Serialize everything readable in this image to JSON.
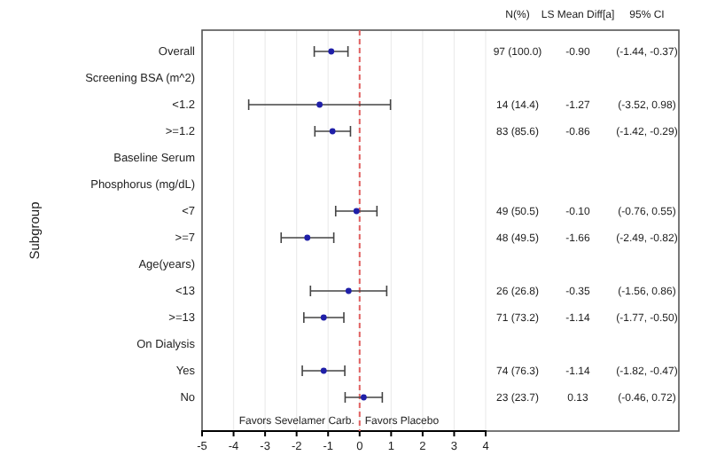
{
  "chart_data": {
    "type": "scatter",
    "orientation": "horizontal",
    "ylabel": "Subgroup",
    "categories": [
      "Overall",
      "Screening BSA (m^2)",
      "<1.2",
      ">=1.2",
      "Baseline Serum",
      "Phosphorus (mg/dL)",
      "<7",
      ">=7",
      "Age(years)",
      "<13",
      ">=13",
      "On Dialysis",
      "Yes",
      "No"
    ],
    "series": [
      {
        "color": "#1f1fa8",
        "values": [
          -0.9,
          null,
          -1.27,
          -0.86,
          null,
          null,
          -0.1,
          -1.66,
          null,
          -0.35,
          -1.14,
          null,
          -1.14,
          0.13
        ],
        "errors": [
          [
            -1.44,
            -0.37
          ],
          null,
          [
            -3.52,
            0.98
          ],
          [
            -1.42,
            -0.29
          ],
          null,
          null,
          [
            -0.76,
            0.55
          ],
          [
            -2.49,
            -0.82
          ],
          null,
          [
            -1.56,
            0.86
          ],
          [
            -1.77,
            -0.5
          ],
          null,
          [
            -1.82,
            -0.47
          ],
          [
            -0.46,
            0.72
          ]
        ],
        "value_labels": [
          "-0.90",
          null,
          "-1.27",
          "-0.86",
          null,
          null,
          "-0.10",
          "-1.66",
          null,
          "-0.35",
          "-1.14",
          null,
          "-1.14",
          "0.13"
        ]
      }
    ],
    "xlim": [
      -5,
      4
    ],
    "xticks": [
      -5,
      -4,
      -3,
      -2,
      -1,
      0,
      1,
      2,
      3,
      4
    ],
    "grid": "x",
    "marker": "circle",
    "ref_lines": [
      {
        "axis": "x",
        "value": 0,
        "color": "#e06060",
        "line_style": "dashed"
      }
    ],
    "annotations": [
      "N(%)",
      "LS Mean Diff[a]",
      "95% CI",
      "Favors Sevelamer Carb.",
      "Favors Placebo",
      "97 (100.0)",
      "14 (14.4)",
      "83 (85.6)",
      "49 (50.5)",
      "48 (49.5)",
      "26 (26.8)",
      "71 (73.2)",
      "74 (76.3)",
      "23 (23.7)",
      "(-1.44, -0.37)",
      "(-3.52, 0.98)",
      "(-1.42, -0.29)",
      "(-0.76, 0.55)",
      "(-2.49, -0.82)",
      "(-1.56, 0.86)",
      "(-1.77, -0.50)",
      "(-1.82, -0.47)",
      "(-0.46, 0.72)"
    ]
  }
}
